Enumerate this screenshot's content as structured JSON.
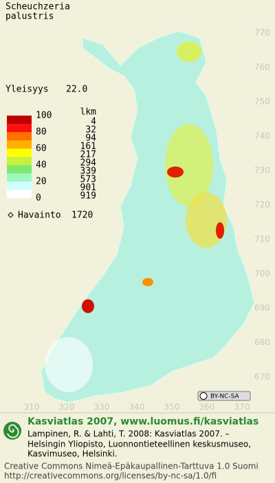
{
  "species": {
    "genus": "Scheuchzeria",
    "epithet": "palustris"
  },
  "frequency": {
    "label": "Yleisyys",
    "value": "22.0"
  },
  "legend": {
    "scale": [
      "100",
      "80",
      "60",
      "40",
      "20",
      "0"
    ],
    "count_header": "lkm",
    "counts": [
      "4",
      "32",
      "94",
      "161",
      "217",
      "294",
      "339",
      "573",
      "901",
      "919"
    ],
    "observation_label": "Havainto",
    "observation_count": "1720"
  },
  "axes": {
    "north": [
      "770",
      "760",
      "750",
      "740",
      "730",
      "720",
      "710",
      "700",
      "690",
      "680",
      "670"
    ],
    "east": [
      "310",
      "320",
      "330",
      "340",
      "350",
      "360",
      "370"
    ]
  },
  "license_badge": "BY-NC-SA",
  "footer": {
    "title": "Kasviatlas 2007, www.luomus.fi/kasviatlas",
    "citation": [
      "Lampinen, R. & Lahti, T. 2008: Kasviatlas 2007. –",
      "Helsingin Yliopisto, Luonnontieteellinen keskusmuseo,",
      "Kasvimuseo, Helsinki."
    ],
    "license": [
      "Creative Commons Nimeä-Epäkaupallinen-Tarttuva 1.0 Suomi",
      "http://creativecommons.org/licenses/by-nc-sa/1.0/fi"
    ]
  }
}
